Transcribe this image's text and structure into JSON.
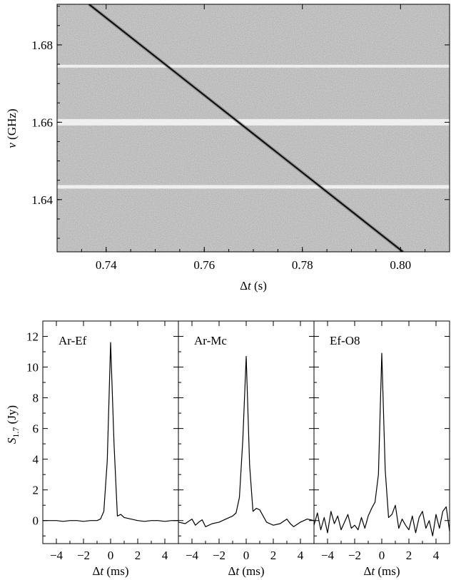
{
  "chart_data": [
    {
      "type": "heatmap",
      "colormap": "grayscale (dark = bright signal)",
      "xlabel_symbol": "Δ",
      "xlabel_italic": "t",
      "xlabel_unit": " (s)",
      "ylabel_italic": "ν",
      "ylabel_unit": " (GHz)",
      "xlim": [
        0.73,
        0.81
      ],
      "ylim": [
        1.6265,
        1.6905
      ],
      "xticks": [
        0.74,
        0.76,
        0.78,
        0.8
      ],
      "xtick_labels": [
        "0.74",
        "0.76",
        "0.78",
        "0.80"
      ],
      "yticks": [
        1.64,
        1.66,
        1.68
      ],
      "ytick_labels": [
        "1.64",
        "1.66",
        "1.68"
      ],
      "dispersion_sweep": {
        "start": {
          "dt": 0.7365,
          "freq": 1.6905
        },
        "end": {
          "dt": 0.8005,
          "freq": 1.6265
        }
      },
      "bright_bands_freq": [
        1.66,
        1.6433,
        1.6745
      ]
    },
    {
      "type": "line",
      "panel_label": "Ar-Ef",
      "xlim": [
        -5,
        5
      ],
      "ylim": [
        -1.5,
        13
      ],
      "xticks": [
        -4,
        -2,
        0,
        2,
        4
      ],
      "xtick_labels": [
        "−4",
        "−2",
        "0",
        "2",
        "4"
      ],
      "yticks": [
        0,
        2,
        4,
        6,
        8,
        10,
        12
      ],
      "ytick_labels": [
        "0",
        "2",
        "4",
        "6",
        "8",
        "10",
        "12"
      ],
      "ylabel_italic": "S",
      "ylabel_sub": "1.7",
      "ylabel_unit": " (Jy)",
      "xlabel_symbol": "Δ",
      "xlabel_italic": "t",
      "xlabel_unit": " (ms)",
      "x": [
        -5,
        -4.5,
        -4,
        -3.5,
        -3,
        -2.5,
        -2,
        -1.5,
        -1,
        -0.75,
        -0.5,
        -0.25,
        0,
        0.25,
        0.5,
        0.75,
        1,
        1.5,
        2,
        2.5,
        3,
        3.5,
        4,
        4.5,
        5
      ],
      "y": [
        0,
        0,
        0,
        -0.05,
        0,
        0,
        -0.05,
        0,
        0,
        0.1,
        0.6,
        3.9,
        11.6,
        5.0,
        0.3,
        0.4,
        0.2,
        0.1,
        0,
        -0.05,
        0,
        0,
        -0.05,
        0,
        0
      ]
    },
    {
      "type": "line",
      "panel_label": "Ar-Mc",
      "xlim": [
        -5,
        5
      ],
      "ylim": [
        -1.5,
        13
      ],
      "xticks": [
        -4,
        -2,
        0,
        2,
        4
      ],
      "xtick_labels": [
        "−4",
        "−2",
        "0",
        "2",
        "4"
      ],
      "xlabel_symbol": "Δ",
      "xlabel_italic": "t",
      "xlabel_unit": " (ms)",
      "x": [
        -5,
        -4.5,
        -4,
        -3.75,
        -3.5,
        -3.25,
        -3,
        -2.5,
        -2,
        -1.5,
        -1,
        -0.75,
        -0.5,
        -0.25,
        0,
        0.25,
        0.5,
        0.75,
        1,
        1.5,
        2,
        2.5,
        3,
        3.25,
        3.5,
        4,
        4.5,
        5
      ],
      "y": [
        -0.1,
        -0.2,
        0.1,
        -0.3,
        -0.1,
        0.05,
        -0.4,
        -0.2,
        -0.1,
        0.1,
        0.3,
        0.5,
        1.5,
        5.3,
        10.7,
        3.6,
        0.6,
        0.8,
        0.7,
        -0.1,
        -0.3,
        -0.2,
        0.1,
        -0.2,
        -0.4,
        -0.1,
        0.1,
        0
      ]
    },
    {
      "type": "line",
      "panel_label": "Ef-O8",
      "xlim": [
        -5,
        5
      ],
      "ylim": [
        -1.5,
        13
      ],
      "xticks": [
        -4,
        -2,
        0,
        2,
        4
      ],
      "xtick_labels": [
        "−4",
        "−2",
        "0",
        "2",
        "4"
      ],
      "xlabel_symbol": "Δ",
      "xlabel_italic": "t",
      "xlabel_unit": " (ms)",
      "x": [
        -5,
        -4.75,
        -4.5,
        -4.25,
        -4,
        -3.75,
        -3.5,
        -3.25,
        -3,
        -2.75,
        -2.5,
        -2.25,
        -2,
        -1.75,
        -1.5,
        -1.25,
        -1,
        -0.75,
        -0.5,
        -0.25,
        0,
        0.25,
        0.5,
        0.75,
        1,
        1.25,
        1.5,
        1.75,
        2,
        2.25,
        2.5,
        2.75,
        3,
        3.25,
        3.5,
        3.75,
        4,
        4.25,
        4.5,
        4.75,
        5
      ],
      "y": [
        -0.3,
        0.5,
        -0.6,
        0.2,
        -0.8,
        0.6,
        -0.2,
        0.3,
        -0.6,
        -0.1,
        0.4,
        -0.5,
        -0.3,
        -0.6,
        0.2,
        -0.5,
        0.3,
        0.8,
        1.2,
        3.0,
        10.9,
        3.3,
        0.2,
        0.4,
        1.0,
        -0.5,
        0.1,
        -0.3,
        -0.6,
        0.3,
        -0.8,
        0.2,
        0.6,
        -0.5,
        0.0,
        -1.0,
        0.4,
        -0.5,
        0.6,
        0.9,
        -0.7
      ]
    }
  ]
}
